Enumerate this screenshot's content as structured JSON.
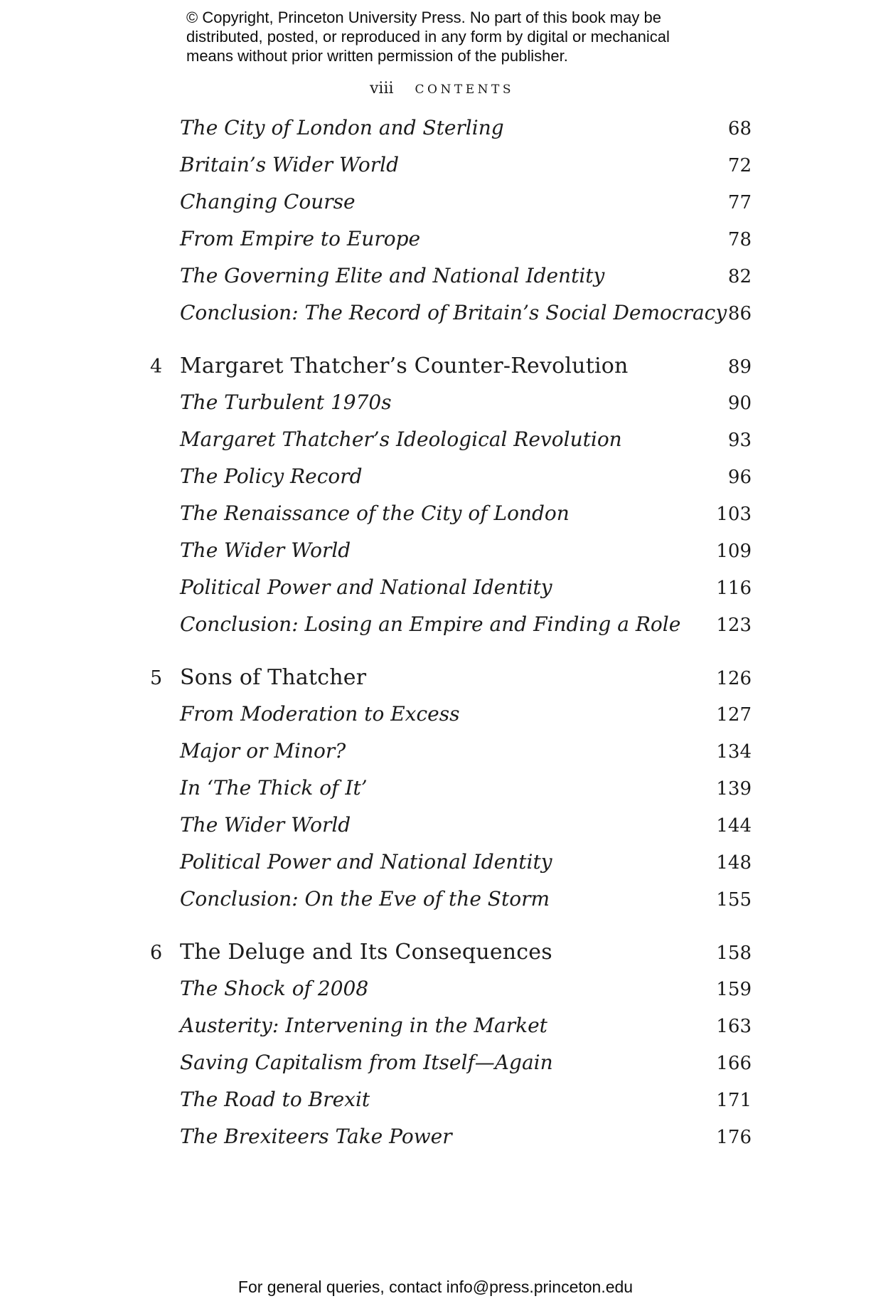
{
  "copyright": {
    "lines": [
      "© Copyright, Princeton University Press. No part of this book may be",
      "distributed, posted, or reproduced in any form by digital or mechanical",
      "means without prior written permission of the publisher."
    ]
  },
  "header": {
    "folio": "viii",
    "title": "CONTENTS"
  },
  "toc": {
    "entries": [
      {
        "type": "sub",
        "title": "The City of London and Sterling",
        "page": "68"
      },
      {
        "type": "sub",
        "title": "Britain’s Wider World",
        "page": "72"
      },
      {
        "type": "sub",
        "title": "Changing Course",
        "page": "77"
      },
      {
        "type": "sub",
        "title": "From Empire to Europe",
        "page": "78"
      },
      {
        "type": "sub",
        "title": "The Governing Elite and National Identity",
        "page": "82"
      },
      {
        "type": "sub",
        "title": "Conclusion: The Record of Britain’s Social Democracy",
        "page": "86"
      },
      {
        "type": "chapter",
        "number": "4",
        "title": "Margaret Thatcher’s Counter-Revolution",
        "page": "89"
      },
      {
        "type": "sub",
        "title": "The Turbulent 1970s",
        "page": "90"
      },
      {
        "type": "sub",
        "title": "Margaret Thatcher’s Ideological Revolution",
        "page": "93"
      },
      {
        "type": "sub",
        "title": "The Policy Record",
        "page": "96"
      },
      {
        "type": "sub",
        "title": "The Renaissance of the City of London",
        "page": "103"
      },
      {
        "type": "sub",
        "title": "The Wider World",
        "page": "109"
      },
      {
        "type": "sub",
        "title": "Political Power and National Identity",
        "page": "116"
      },
      {
        "type": "sub",
        "title": "Conclusion: Losing an Empire and Finding a Role",
        "page": "123"
      },
      {
        "type": "chapter",
        "number": "5",
        "title": "Sons of Thatcher",
        "page": "126"
      },
      {
        "type": "sub",
        "title": "From Moderation to Excess",
        "page": "127"
      },
      {
        "type": "sub",
        "title": "Major or Minor?",
        "page": "134"
      },
      {
        "type": "sub",
        "title": "In ‘The Thick of It’",
        "page": "139"
      },
      {
        "type": "sub",
        "title": "The Wider World",
        "page": "144"
      },
      {
        "type": "sub",
        "title": "Political Power and National Identity",
        "page": "148"
      },
      {
        "type": "sub",
        "title": "Conclusion: On the Eve of the Storm",
        "page": "155"
      },
      {
        "type": "chapter",
        "number": "6",
        "title": "The Deluge and Its Consequences",
        "page": "158"
      },
      {
        "type": "sub",
        "title": "The Shock of 2008",
        "page": "159"
      },
      {
        "type": "sub",
        "title": "Austerity: Intervening in the Market",
        "page": "163"
      },
      {
        "type": "sub",
        "title": "Saving Capitalism from Itself—Again",
        "page": "166"
      },
      {
        "type": "sub",
        "title": "The Road to Brexit",
        "page": "171"
      },
      {
        "type": "sub",
        "title": "The Brexiteers Take Power",
        "page": "176"
      }
    ]
  },
  "footer": {
    "text": "For general queries, contact info@press.princeton.edu"
  }
}
